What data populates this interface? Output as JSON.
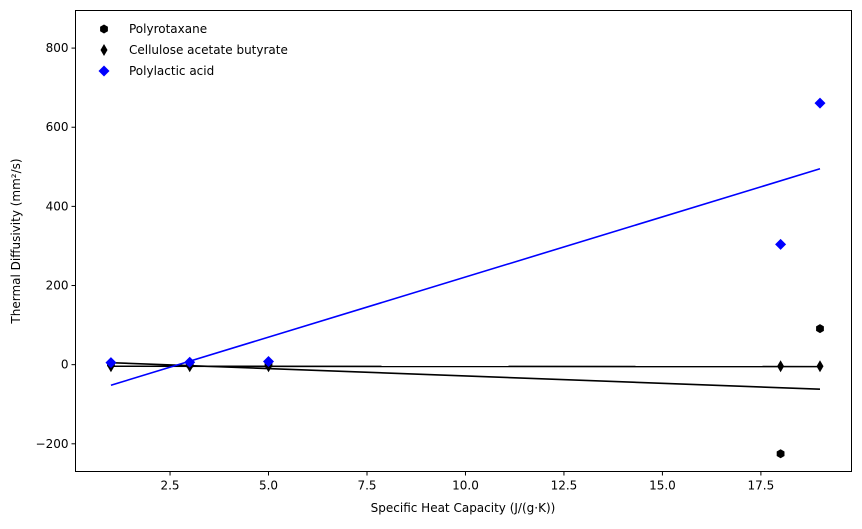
{
  "chart_data": {
    "type": "scatter",
    "xlabel": "Specific Heat Capacity (J/(g·K))",
    "ylabel": "Thermal Diffusivity (mm²/s)",
    "xlim": [
      0.1,
      19.8
    ],
    "ylim": [
      -270,
      895
    ],
    "xticks": [
      2.5,
      5.0,
      7.5,
      10.0,
      12.5,
      15.0,
      17.5
    ],
    "xtick_labels": [
      "2.5",
      "5.0",
      "7.5",
      "10.0",
      "12.5",
      "15.0",
      "17.5"
    ],
    "yticks": [
      -200,
      0,
      200,
      400,
      600,
      800
    ],
    "ytick_labels": [
      "−200",
      "0",
      "200",
      "400",
      "600",
      "800"
    ],
    "grid": false,
    "legend_position": "top-left",
    "series": [
      {
        "name": "Polyrotaxane",
        "marker": "hexagon",
        "color": "#000000",
        "points": [
          [
            1,
            2
          ],
          [
            3,
            0
          ],
          [
            5,
            0
          ],
          [
            18,
            -225
          ],
          [
            19,
            91
          ]
        ],
        "fit": {
          "x": [
            1,
            19
          ],
          "y": [
            5,
            -62
          ],
          "color": "#000000"
        }
      },
      {
        "name": "Cellulose acetate butyrate",
        "marker": "thin_diamond",
        "color": "#000000",
        "points": [
          [
            1,
            -4
          ],
          [
            3,
            -4
          ],
          [
            5,
            -4
          ],
          [
            18,
            -4
          ],
          [
            19,
            -4
          ]
        ],
        "fit": {
          "x": [
            1,
            19
          ],
          "y": [
            -4,
            -5
          ],
          "color": "#000000"
        }
      },
      {
        "name": "Polylactic acid",
        "marker": "diamond",
        "color": "#0000ff",
        "points": [
          [
            1,
            5
          ],
          [
            3,
            6
          ],
          [
            5,
            8
          ],
          [
            18,
            304
          ],
          [
            19,
            661
          ]
        ],
        "fit": {
          "x": [
            1,
            19
          ],
          "y": [
            -52,
            495
          ],
          "color": "#0000ff"
        }
      }
    ]
  }
}
